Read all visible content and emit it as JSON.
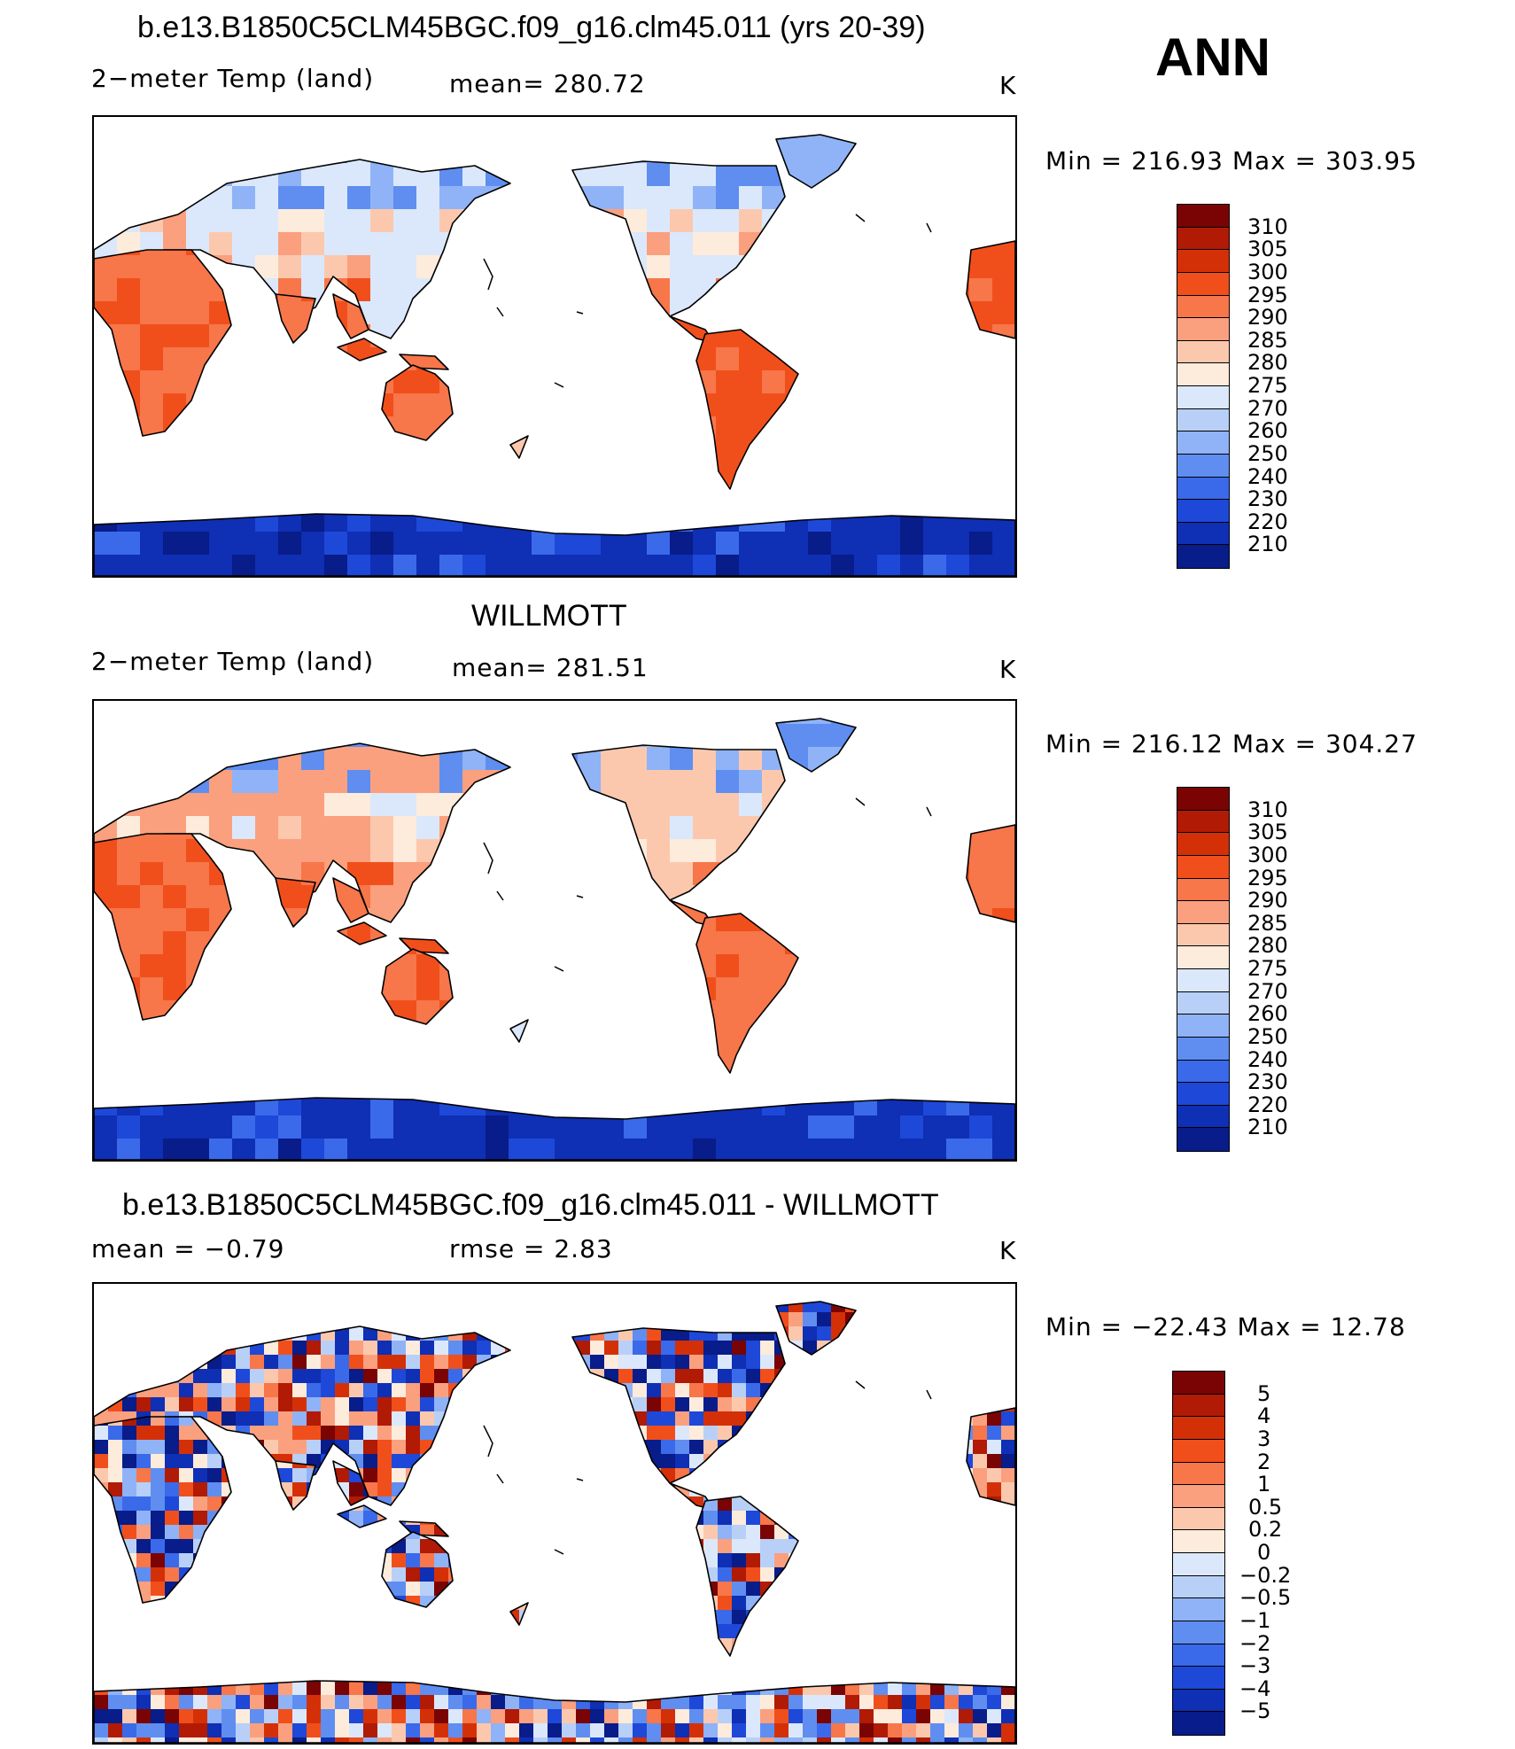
{
  "season": "ANN",
  "units": "K",
  "panels": [
    {
      "id": "model",
      "title": "b.e13.B1850C5CLM45BGC.f09_g16.clm45.011 (yrs 20-39)",
      "left_label": "2−meter Temp (land)",
      "center_label": "mean= 280.72",
      "right_label": "K",
      "minmax": "Min  =  216.93  Max  =  303.95",
      "scale": "abs",
      "colorbar_labels": [
        "310",
        "305",
        "300",
        "295",
        "290",
        "285",
        "280",
        "275",
        "270",
        "260",
        "250",
        "240",
        "230",
        "220",
        "210"
      ]
    },
    {
      "id": "obs",
      "title": "WILLMOTT",
      "left_label": "2−meter Temp (land)",
      "center_label": "mean= 281.51",
      "right_label": "K",
      "minmax": "Min  =  216.12  Max  =  304.27",
      "scale": "abs",
      "colorbar_labels": [
        "310",
        "305",
        "300",
        "295",
        "290",
        "285",
        "280",
        "275",
        "270",
        "260",
        "250",
        "240",
        "230",
        "220",
        "210"
      ]
    },
    {
      "id": "diff",
      "title": "b.e13.B1850C5CLM45BGC.f09_g16.clm45.011 - WILLMOTT",
      "left_label": "mean  =    −0.79",
      "center_label": "rmse  =     2.83",
      "right_label": "K",
      "minmax": "Min  =  −22.43  Max  =    12.78",
      "scale": "diff",
      "colorbar_labels": [
        "5",
        "4",
        "3",
        "2",
        "1",
        "0.5",
        "0.2",
        "0",
        "−0.2",
        "−0.5",
        "−1",
        "−2",
        "−3",
        "−4",
        "−5"
      ]
    }
  ],
  "colors": {
    "abs_scale": [
      "#7a0403",
      "#b11a04",
      "#d43008",
      "#f04f1c",
      "#f7764a",
      "#faa07e",
      "#fcc8ad",
      "#fdebdc",
      "#dbe8fb",
      "#b8d0f8",
      "#8fb3f6",
      "#5f8ef0",
      "#3a6aea",
      "#1e48d8",
      "#0f2fb4",
      "#081c8a"
    ],
    "diff_scale": [
      "#7a0403",
      "#b11a04",
      "#d43008",
      "#f04f1c",
      "#f7764a",
      "#faa07e",
      "#fcc8ad",
      "#fdebdc",
      "#dbe8fb",
      "#b8d0f8",
      "#8fb3f6",
      "#5f8ef0",
      "#3a6aea",
      "#1e48d8",
      "#0f2fb4",
      "#081c8a"
    ]
  }
}
